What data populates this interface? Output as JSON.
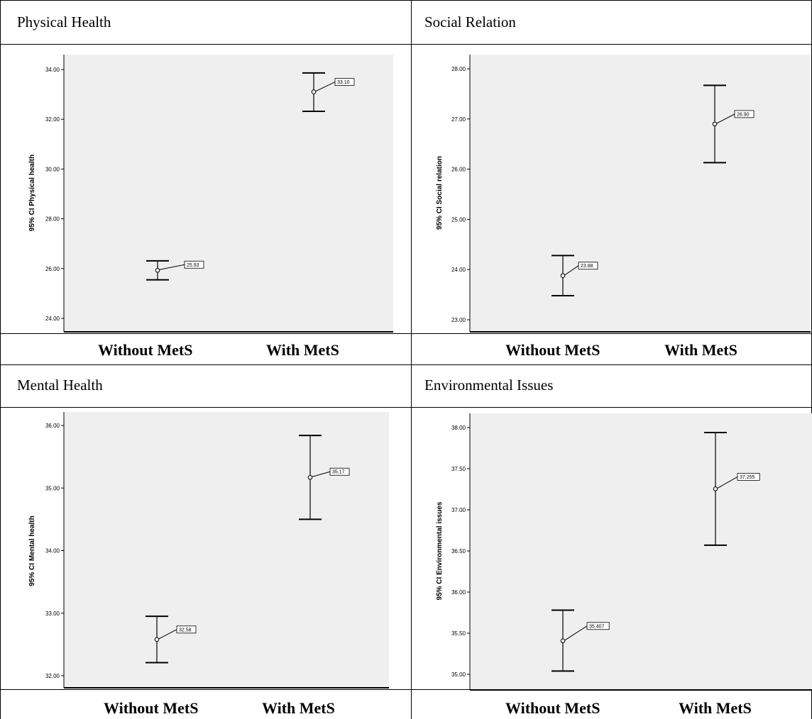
{
  "chart_data": [
    {
      "type": "errorbar",
      "title": "Physical Health",
      "ylabel": "95% CI Physical health",
      "ylim": [
        23.5,
        35.0
      ],
      "yticks": [
        "24.00",
        "26.00",
        "28.00",
        "30.00",
        "32.00",
        "34.00"
      ],
      "categories": [
        "Without MetS",
        "With MetS"
      ],
      "means": [
        25.93,
        33.1
      ],
      "mean_labels": [
        "25.93",
        "33.10"
      ],
      "lower": [
        25.55,
        32.32
      ],
      "upper": [
        26.31,
        33.86
      ]
    },
    {
      "type": "errorbar",
      "title": "Social Relation",
      "ylabel": "95% CI Social relation",
      "ylim": [
        22.9,
        28.3
      ],
      "yticks": [
        "23.00",
        "24.00",
        "25.00",
        "26.00",
        "27.00",
        "28.00"
      ],
      "categories": [
        "Without MetS",
        "With MetS"
      ],
      "means": [
        23.88,
        26.9
      ],
      "mean_labels": [
        "23.88",
        "26.90"
      ],
      "lower": [
        23.48,
        26.13
      ],
      "upper": [
        24.28,
        27.67
      ]
    },
    {
      "type": "errorbar",
      "title": "Mental Health",
      "ylabel": "95% CI Mental health",
      "ylim": [
        31.85,
        36.25
      ],
      "yticks": [
        "32.00",
        "33.00",
        "34.00",
        "35.00",
        "36.00"
      ],
      "categories": [
        "Without MetS",
        "With MetS"
      ],
      "means": [
        32.58,
        35.17
      ],
      "mean_labels": [
        "32.58",
        "35.17"
      ],
      "lower": [
        32.21,
        34.5
      ],
      "upper": [
        32.95,
        35.84
      ]
    },
    {
      "type": "errorbar",
      "title": "Environmental Issues",
      "ylabel": "95% CI Environmental issues",
      "ylim": [
        34.9,
        38.15
      ],
      "yticks": [
        "35.00",
        "35.50",
        "36.00",
        "36.50",
        "37.00",
        "37.50",
        "38.00"
      ],
      "categories": [
        "Without MetS",
        "With MetS"
      ],
      "means": [
        35.407,
        37.255
      ],
      "mean_labels": [
        "35.407",
        "37.255"
      ],
      "lower": [
        35.04,
        36.57
      ],
      "upper": [
        35.78,
        37.94
      ]
    }
  ]
}
